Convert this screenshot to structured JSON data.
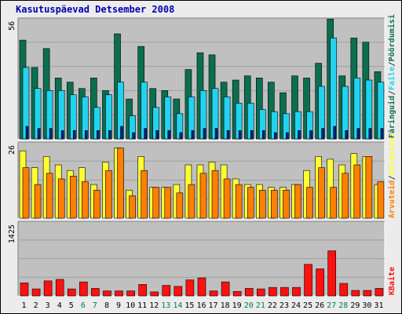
{
  "title": "Kasutuspäevad Detsember 2008",
  "colors": {
    "background": "#ececec",
    "plot_bg": "#c0c0c0",
    "title": "#0000b0",
    "pages": "#0b6e4f",
    "files": "#22d3f0",
    "visits": "#00228a",
    "hosts": "#ffff33",
    "kbytes": "#ff7f00",
    "traffic": "#ff1111",
    "weekend_label": "#008040",
    "weekday_label": "#000000"
  },
  "chart_data": [
    {
      "type": "bar",
      "panel": "requests",
      "ymax_label": "56",
      "ylim": [
        0,
        56
      ],
      "categories": [
        "1",
        "2",
        "3",
        "4",
        "5",
        "6",
        "7",
        "8",
        "9",
        "10",
        "11",
        "12",
        "13",
        "14",
        "15",
        "16",
        "17",
        "18",
        "19",
        "20",
        "21",
        "22",
        "23",
        "24",
        "25",
        "26",
        "27",
        "28",
        "29",
        "30",
        "31"
      ],
      "weekend_days": [
        "6",
        "7",
        "13",
        "14",
        "20",
        "21",
        "27",
        "28"
      ],
      "right_labels": [
        "Päringuid",
        "Faile",
        "Pöördumisi"
      ],
      "series": [
        {
          "name": "Päringuid",
          "values": [
            47,
            34,
            43,
            29,
            27,
            24,
            29,
            23,
            50,
            19,
            44,
            24,
            23,
            19,
            33,
            41,
            40,
            27,
            28,
            30,
            29,
            27,
            22,
            30,
            29,
            36,
            57,
            30,
            48,
            46,
            32
          ]
        },
        {
          "name": "Faile",
          "values": [
            34,
            24,
            23,
            23,
            21,
            20,
            15,
            21,
            27,
            11,
            27,
            15,
            20,
            12,
            20,
            23,
            24,
            20,
            17,
            17,
            14,
            13,
            12,
            13,
            13,
            25,
            48,
            25,
            29,
            28,
            27
          ]
        },
        {
          "name": "Pöördumisi",
          "values": [
            6,
            5,
            5,
            4,
            4,
            4,
            4,
            4,
            6,
            3,
            5,
            4,
            4,
            3,
            4,
            5,
            5,
            4,
            4,
            4,
            4,
            3,
            3,
            4,
            4,
            5,
            6,
            4,
            5,
            5,
            5
          ]
        }
      ]
    },
    {
      "type": "bar",
      "panel": "volume",
      "ymax_label": "26",
      "ylim": [
        0,
        26
      ],
      "right_labels": [
        "Arvuteid",
        "Külastusi"
      ],
      "series": [
        {
          "name": "Külastusi",
          "values": [
            24,
            18,
            22,
            19,
            17,
            18,
            12,
            20,
            25,
            10,
            22,
            11,
            11,
            12,
            19,
            19,
            20,
            19,
            14,
            12,
            12,
            11,
            11,
            12,
            17,
            22,
            21,
            19,
            23,
            22,
            12
          ]
        },
        {
          "name": "Arvuteid",
          "values": [
            18,
            12,
            16,
            14,
            15,
            13,
            10,
            17,
            25,
            8,
            17,
            11,
            11,
            9,
            12,
            16,
            17,
            14,
            12,
            11,
            10,
            10,
            10,
            12,
            11,
            18,
            11,
            16,
            19,
            22,
            13
          ]
        }
      ]
    },
    {
      "type": "bar",
      "panel": "kbytes",
      "ymax_label": "1425",
      "ylim": [
        0,
        1425
      ],
      "right_labels": [
        "KBaite"
      ],
      "series": [
        {
          "name": "KBaite",
          "values": [
            260,
            140,
            300,
            330,
            140,
            280,
            150,
            100,
            100,
            100,
            230,
            80,
            210,
            190,
            320,
            360,
            100,
            280,
            90,
            150,
            140,
            170,
            170,
            170,
            630,
            540,
            900,
            250,
            110,
            110,
            150
          ]
        }
      ]
    }
  ]
}
